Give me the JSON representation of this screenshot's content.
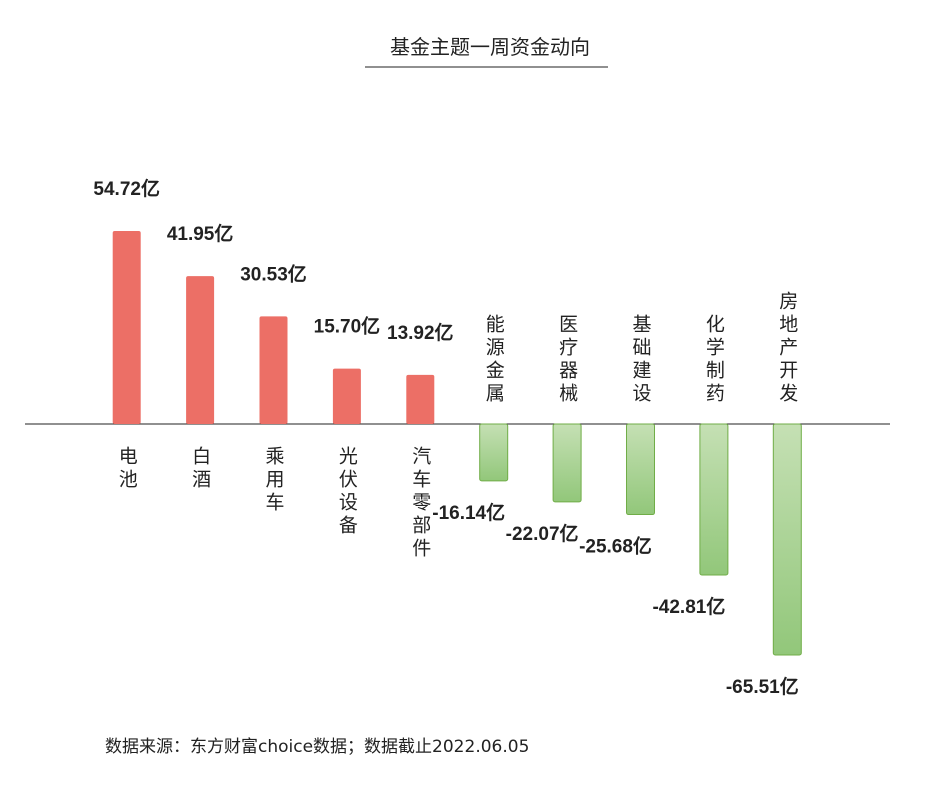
{
  "chart_data": {
    "type": "bar",
    "title": "基金主题一周资金动向",
    "categories": [
      "电池",
      "白酒",
      "乘用车",
      "光伏设备",
      "汽车零部件",
      "能源金属",
      "医疗器械",
      "基础建设",
      "化学制药",
      "房地产开发"
    ],
    "values": [
      54.72,
      41.95,
      30.53,
      15.7,
      13.92,
      -16.14,
      -22.07,
      -25.68,
      -42.81,
      -65.51
    ],
    "value_labels": [
      "54.72亿",
      "41.95亿",
      "30.53亿",
      "15.70亿",
      "13.92亿",
      "-16.14亿",
      "-22.07亿",
      "-25.68亿",
      "-42.81亿",
      "-65.51亿"
    ],
    "positive_color": "#ec6f66",
    "negative_color": "#a9d18e",
    "source": "数据来源：东方财富choice数据；数据截止2022.06.05"
  }
}
